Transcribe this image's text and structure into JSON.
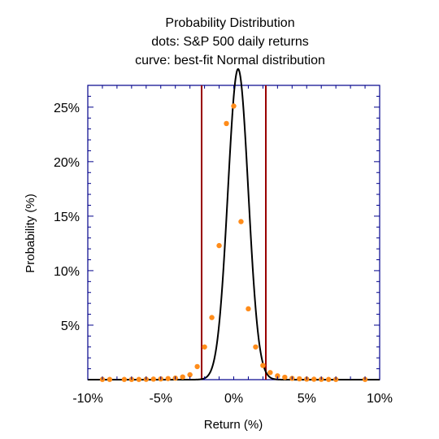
{
  "chart_data": {
    "type": "scatter",
    "title_lines": [
      "Probability Distribution",
      "dots: S&P 500 daily returns",
      "curve: best-fit Normal distribution"
    ],
    "xlabel": "Return (%)",
    "ylabel": "Probability (%)",
    "xlim": [
      -10,
      10
    ],
    "ylim": [
      0,
      27
    ],
    "x_ticks": [
      {
        "value": -10,
        "label": "-10%"
      },
      {
        "value": -5,
        "label": "-5%"
      },
      {
        "value": 0,
        "label": "0%"
      },
      {
        "value": 5,
        "label": "5%"
      },
      {
        "value": 10,
        "label": "10%"
      }
    ],
    "y_ticks": [
      {
        "value": 5,
        "label": "5%"
      },
      {
        "value": 10,
        "label": "10%"
      },
      {
        "value": 15,
        "label": "15%"
      },
      {
        "value": 20,
        "label": "20%"
      },
      {
        "value": 25,
        "label": "25%"
      }
    ],
    "grid": false,
    "dot_color": "#ff8c1a",
    "curve_color": "#000000",
    "vline_color": "#990000",
    "axis_color": "#00008b",
    "vertical_lines_x": [
      -2.2,
      2.2
    ],
    "dots": {
      "x": [
        -9,
        -8.5,
        -7.5,
        -7,
        -6.5,
        -6,
        -5.5,
        -5,
        -4.5,
        -4,
        -3.5,
        -3,
        -2.5,
        -2,
        -1.5,
        -1,
        -0.5,
        0,
        0.5,
        1,
        1.5,
        2,
        2.5,
        3,
        3.5,
        4,
        4.5,
        5,
        5.5,
        6,
        6.5,
        7,
        9
      ],
      "y": [
        0.02,
        0.02,
        0.02,
        0.02,
        0.02,
        0.03,
        0.05,
        0.07,
        0.1,
        0.14,
        0.25,
        0.45,
        1.2,
        3.0,
        5.7,
        12.3,
        23.5,
        25.1,
        14.5,
        6.5,
        3.0,
        1.3,
        0.65,
        0.35,
        0.22,
        0.12,
        0.08,
        0.05,
        0.04,
        0.03,
        0.02,
        0.02,
        0.02
      ]
    },
    "normal_curve": {
      "mean": 0.3,
      "sd": 0.7
    }
  }
}
